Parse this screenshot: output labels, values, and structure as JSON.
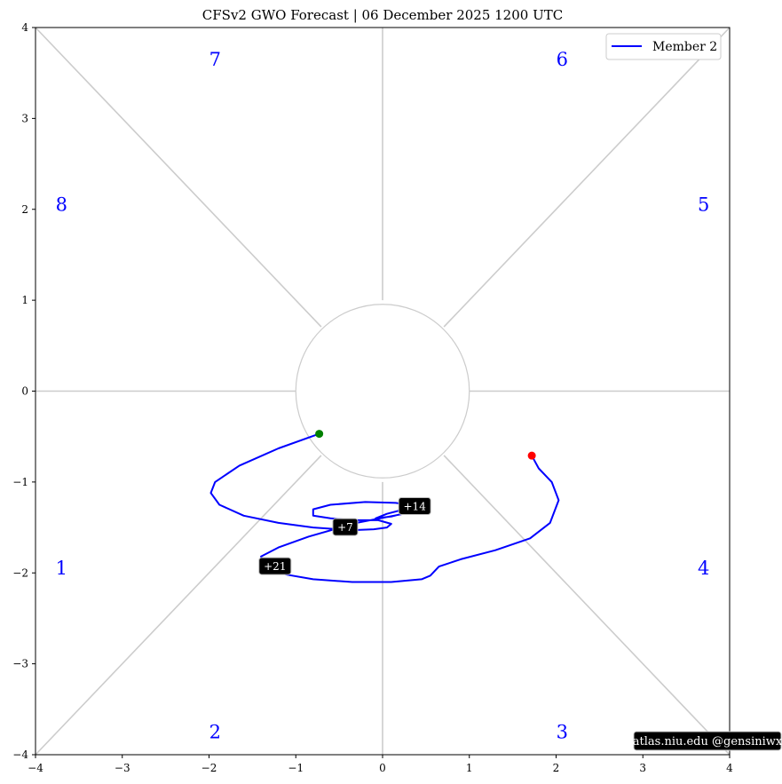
{
  "chart_data": {
    "type": "line",
    "title": "CFSv2 GWO Forecast   |   06  December  2025 1200 UTC",
    "xlabel": "",
    "ylabel": "",
    "xlim": [
      -4,
      4
    ],
    "ylim": [
      -4,
      4
    ],
    "x_ticks": [
      -4,
      -3,
      -2,
      -1,
      0,
      1,
      2,
      3,
      4
    ],
    "y_ticks": [
      -4,
      -3,
      -2,
      -1,
      0,
      1,
      2,
      3,
      4
    ],
    "x_tick_labels": [
      "−4",
      "−3",
      "−2",
      "−1",
      "0",
      "1",
      "2",
      "3",
      "4"
    ],
    "y_tick_labels": [
      "−4",
      "−3",
      "−2",
      "−1",
      "0",
      "1",
      "2",
      "3",
      "4"
    ],
    "grid": false,
    "legend_position": "top-right",
    "inner_circle_radius": 1,
    "phase_labels": [
      {
        "label": "1",
        "x": -3.7,
        "y": -1.95
      },
      {
        "label": "2",
        "x": -1.93,
        "y": -3.75
      },
      {
        "label": "3",
        "x": 2.07,
        "y": -3.75
      },
      {
        "label": "4",
        "x": 3.7,
        "y": -1.95
      },
      {
        "label": "5",
        "x": 3.7,
        "y": 2.05
      },
      {
        "label": "6",
        "x": 2.07,
        "y": 3.65
      },
      {
        "label": "7",
        "x": -1.93,
        "y": 3.65
      },
      {
        "label": "8",
        "x": -3.7,
        "y": 2.05
      }
    ],
    "series": [
      {
        "name": "Member 2",
        "color": "#0000ff",
        "x": [
          -0.73,
          -1.2,
          -1.65,
          -1.93,
          -1.98,
          -1.88,
          -1.6,
          -1.2,
          -0.8,
          -0.35,
          -0.1,
          0.05,
          0.1,
          -0.05,
          -0.35,
          -0.6,
          -0.8,
          -0.8,
          -0.6,
          -0.2,
          0.15,
          0.3,
          0.25,
          0.05,
          -0.08,
          0.1,
          0.3,
          0.5,
          0.35,
          -0.3,
          -0.85,
          -1.2,
          -1.4,
          -1.35,
          -1.1,
          -0.8,
          -0.35,
          0.1,
          0.45,
          0.55,
          0.65,
          0.9,
          1.3,
          1.7,
          1.93,
          2.03,
          1.95,
          1.8,
          1.72
        ],
        "y": [
          -0.47,
          -0.63,
          -0.82,
          -1.0,
          -1.12,
          -1.25,
          -1.37,
          -1.45,
          -1.5,
          -1.53,
          -1.52,
          -1.5,
          -1.46,
          -1.42,
          -1.42,
          -1.4,
          -1.37,
          -1.3,
          -1.25,
          -1.22,
          -1.23,
          -1.25,
          -1.3,
          -1.35,
          -1.4,
          -1.38,
          -1.33,
          -1.27,
          -1.33,
          -1.45,
          -1.6,
          -1.72,
          -1.82,
          -1.95,
          -2.02,
          -2.07,
          -2.1,
          -2.1,
          -2.07,
          -2.03,
          -1.93,
          -1.85,
          -1.75,
          -1.62,
          -1.45,
          -1.2,
          -1.0,
          -0.85,
          -0.71
        ]
      }
    ],
    "start_point": {
      "x": -0.73,
      "y": -0.47,
      "color": "#008000"
    },
    "end_point": {
      "x": 1.72,
      "y": -0.71,
      "color": "#ff0000"
    },
    "day_labels": [
      {
        "label": "+7",
        "x": -0.43,
        "y": -1.5
      },
      {
        "label": "+14",
        "x": 0.37,
        "y": -1.27
      },
      {
        "label": "+21",
        "x": -1.24,
        "y": -1.93
      }
    ]
  },
  "credit": "atlas.niu.edu  @gensiniwx"
}
